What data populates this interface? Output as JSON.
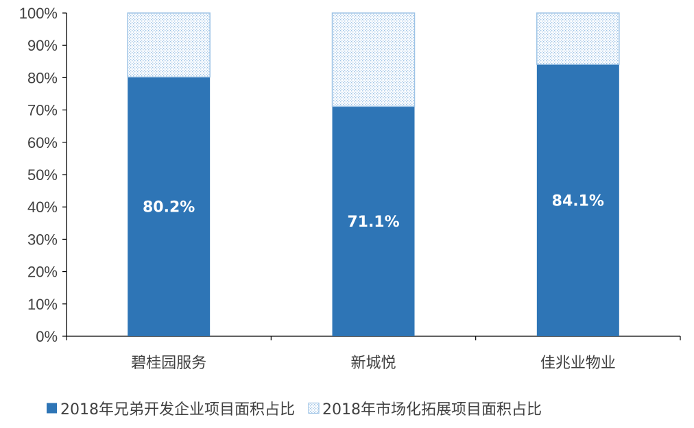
{
  "chart_data": {
    "type": "bar",
    "stacked": true,
    "categories": [
      "碧桂园服务",
      "新城悦",
      "佳兆业物业"
    ],
    "series": [
      {
        "name": "2018年兄弟开发企业项目面积占比",
        "values": [
          80.2,
          71.1,
          84.1
        ],
        "color": "#2E75B6",
        "pattern": "solid",
        "data_labels": [
          "80.2%",
          "71.1%",
          "84.1%"
        ]
      },
      {
        "name": "2018年市场化拓展项目面积占比",
        "values": [
          19.8,
          28.9,
          15.9
        ],
        "color": "#9DC3E6",
        "pattern": "dotted"
      }
    ],
    "ylim": [
      0,
      100
    ],
    "yticks": [
      "0%",
      "10%",
      "20%",
      "30%",
      "40%",
      "50%",
      "60%",
      "70%",
      "80%",
      "90%",
      "100%"
    ],
    "ytick_values": [
      0,
      10,
      20,
      30,
      40,
      50,
      60,
      70,
      80,
      90,
      100
    ],
    "title": "",
    "xlabel": "",
    "ylabel": "",
    "grid": false,
    "legend_position": "bottom"
  }
}
